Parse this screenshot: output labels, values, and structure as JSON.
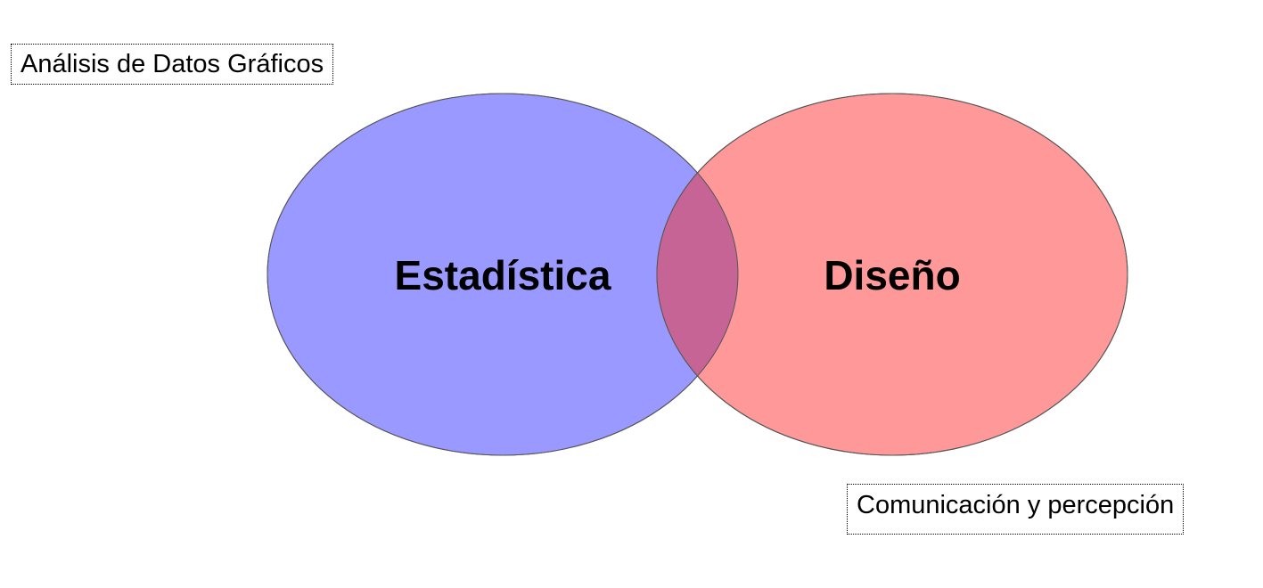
{
  "title": "Análisis de Datos Gráficos",
  "sets": [
    {
      "label": "Estadística",
      "color": "#9999ff"
    },
    {
      "label": "Diseño",
      "color": "#ff9999"
    }
  ],
  "intersection": {
    "color": "#c66595"
  },
  "footer_label": "Comunicación y percepción"
}
